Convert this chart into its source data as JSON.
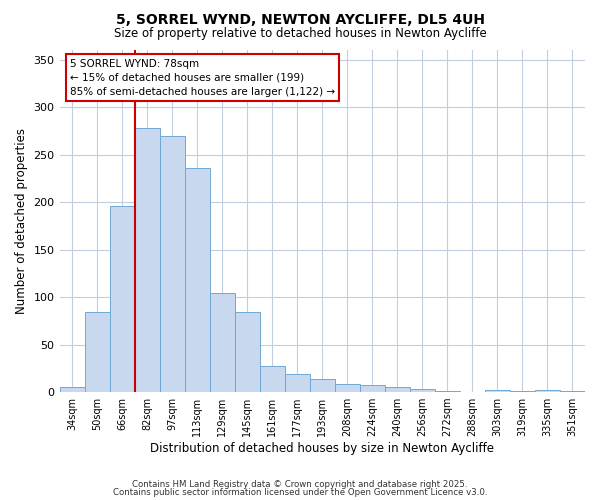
{
  "title": "5, SORREL WYND, NEWTON AYCLIFFE, DL5 4UH",
  "subtitle": "Size of property relative to detached houses in Newton Aycliffe",
  "xlabel": "Distribution of detached houses by size in Newton Aycliffe",
  "ylabel": "Number of detached properties",
  "bar_labels": [
    "34sqm",
    "50sqm",
    "66sqm",
    "82sqm",
    "97sqm",
    "113sqm",
    "129sqm",
    "145sqm",
    "161sqm",
    "177sqm",
    "193sqm",
    "208sqm",
    "224sqm",
    "240sqm",
    "256sqm",
    "272sqm",
    "288sqm",
    "303sqm",
    "319sqm",
    "335sqm",
    "351sqm"
  ],
  "bar_values": [
    5,
    84,
    196,
    278,
    270,
    236,
    104,
    84,
    27,
    19,
    14,
    8,
    7,
    5,
    3,
    1,
    0,
    2,
    1,
    2,
    1
  ],
  "bar_color": "#c8d8ef",
  "bar_edge_color": "#6fa8d4",
  "vline_color": "#cc0000",
  "ylim": [
    0,
    360
  ],
  "yticks": [
    0,
    50,
    100,
    150,
    200,
    250,
    300,
    350
  ],
  "annotation_title": "5 SORREL WYND: 78sqm",
  "annotation_line1": "← 15% of detached houses are smaller (199)",
  "annotation_line2": "85% of semi-detached houses are larger (1,122) →",
  "annotation_box_color": "#ffffff",
  "annotation_box_edge": "#cc0000",
  "footer_line1": "Contains HM Land Registry data © Crown copyright and database right 2025.",
  "footer_line2": "Contains public sector information licensed under the Open Government Licence v3.0.",
  "background_color": "#ffffff",
  "grid_color": "#c0cedf"
}
